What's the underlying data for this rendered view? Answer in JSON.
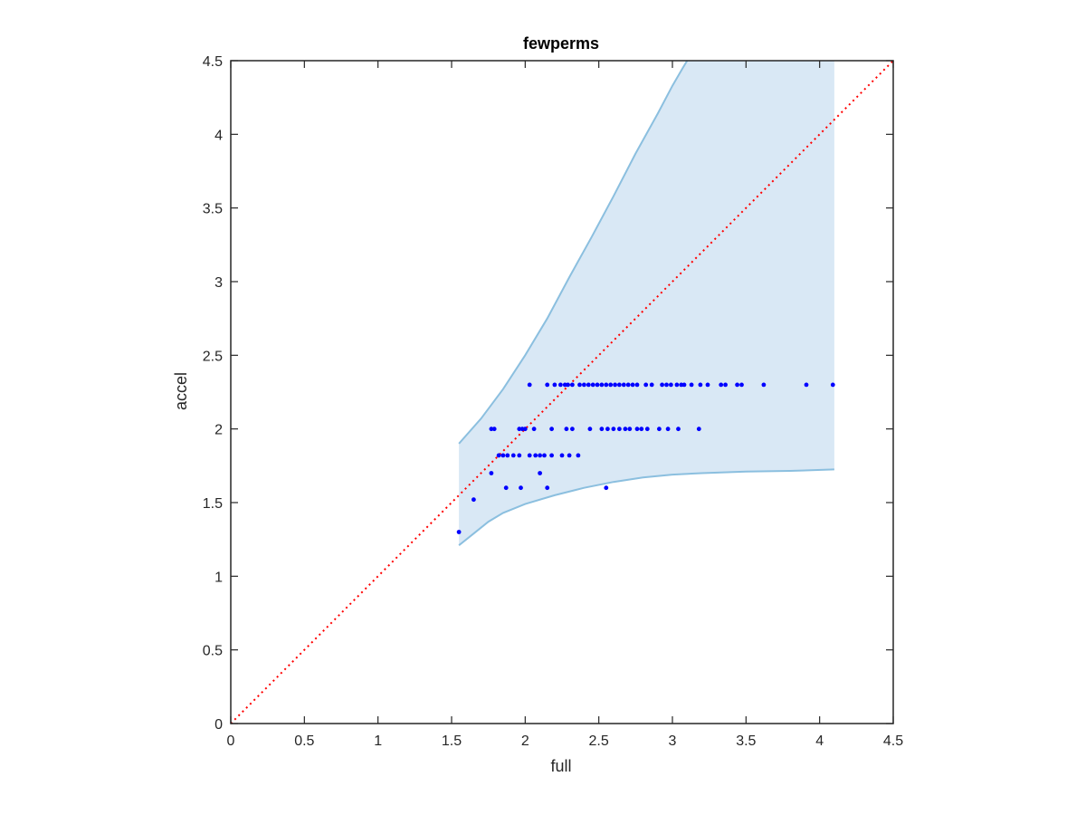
{
  "chart_data": {
    "type": "scatter",
    "title": "fewperms",
    "xlabel": "full",
    "ylabel": "accel",
    "xlim": [
      0,
      4.5
    ],
    "ylim": [
      0,
      4.5
    ],
    "xticks": [
      "0",
      "0.5",
      "1",
      "1.5",
      "2",
      "2.5",
      "3",
      "3.5",
      "4",
      "4.5"
    ],
    "yticks": [
      "0",
      "0.5",
      "1",
      "1.5",
      "2",
      "2.5",
      "3",
      "3.5",
      "4",
      "4.5"
    ],
    "grid": false,
    "legend": "none",
    "colors": {
      "points": "#0000ff",
      "band_fill": "#d9e8f5",
      "band_edge": "#8bbfdf",
      "reference_line": "#ff0000",
      "axes": "#262626"
    },
    "reference_line": {
      "style": "dotted",
      "x": [
        0,
        4.5
      ],
      "y": [
        0,
        4.5
      ]
    },
    "band": {
      "upper": [
        [
          1.55,
          1.9
        ],
        [
          1.7,
          2.07
        ],
        [
          1.85,
          2.27
        ],
        [
          2.0,
          2.5
        ],
        [
          2.15,
          2.75
        ],
        [
          2.3,
          3.03
        ],
        [
          2.45,
          3.3
        ],
        [
          2.6,
          3.58
        ],
        [
          2.75,
          3.87
        ],
        [
          2.9,
          4.14
        ],
        [
          3.0,
          4.33
        ],
        [
          3.07,
          4.45
        ],
        [
          3.1,
          4.5
        ],
        [
          4.1,
          4.5
        ]
      ],
      "lower": [
        [
          1.55,
          1.21
        ],
        [
          1.65,
          1.29
        ],
        [
          1.75,
          1.37
        ],
        [
          1.85,
          1.43
        ],
        [
          2.0,
          1.49
        ],
        [
          2.2,
          1.55
        ],
        [
          2.4,
          1.6
        ],
        [
          2.6,
          1.64
        ],
        [
          2.8,
          1.67
        ],
        [
          3.0,
          1.69
        ],
        [
          3.2,
          1.7
        ],
        [
          3.5,
          1.71
        ],
        [
          3.8,
          1.715
        ],
        [
          4.1,
          1.725
        ]
      ]
    },
    "points": {
      "x": [
        1.55,
        1.65,
        1.77,
        1.87,
        1.97,
        2.15,
        2.55,
        1.77,
        2.1,
        1.82,
        1.85,
        1.88,
        1.92,
        1.96,
        2.03,
        2.07,
        2.1,
        2.13,
        2.18,
        2.25,
        2.3,
        2.36,
        1.79,
        1.96,
        1.98,
        2.0,
        2.06,
        2.18,
        2.28,
        2.32,
        2.44,
        2.52,
        2.56,
        2.6,
        2.64,
        2.68,
        2.71,
        2.76,
        2.79,
        2.83,
        2.91,
        2.97,
        3.04,
        3.18,
        2.03,
        2.15,
        2.2,
        2.24,
        2.27,
        2.29,
        2.32,
        2.37,
        2.4,
        2.43,
        2.46,
        2.49,
        2.52,
        2.55,
        2.58,
        2.61,
        2.64,
        2.67,
        2.7,
        2.73,
        2.76,
        2.82,
        2.86,
        2.93,
        2.96,
        2.99,
        3.03,
        3.06,
        3.08,
        3.13,
        3.19,
        3.24,
        3.33,
        3.36,
        3.44,
        3.47,
        3.62,
        3.91,
        4.09
      ],
      "y": [
        1.3,
        1.52,
        1.7,
        1.6,
        1.6,
        1.6,
        1.6,
        2.0,
        1.7,
        1.82,
        1.82,
        1.82,
        1.82,
        1.82,
        1.82,
        1.82,
        1.82,
        1.82,
        1.82,
        1.82,
        1.82,
        1.82,
        2.0,
        2.0,
        2.0,
        2.0,
        2.0,
        2.0,
        2.0,
        2.0,
        2.0,
        2.0,
        2.0,
        2.0,
        2.0,
        2.0,
        2.0,
        2.0,
        2.0,
        2.0,
        2.0,
        2.0,
        2.0,
        2.0,
        2.3,
        2.3,
        2.3,
        2.3,
        2.3,
        2.3,
        2.3,
        2.3,
        2.3,
        2.3,
        2.3,
        2.3,
        2.3,
        2.3,
        2.3,
        2.3,
        2.3,
        2.3,
        2.3,
        2.3,
        2.3,
        2.3,
        2.3,
        2.3,
        2.3,
        2.3,
        2.3,
        2.3,
        2.3,
        2.3,
        2.3,
        2.3,
        2.3,
        2.3,
        2.3,
        2.3,
        2.3,
        2.3,
        2.3
      ]
    }
  }
}
